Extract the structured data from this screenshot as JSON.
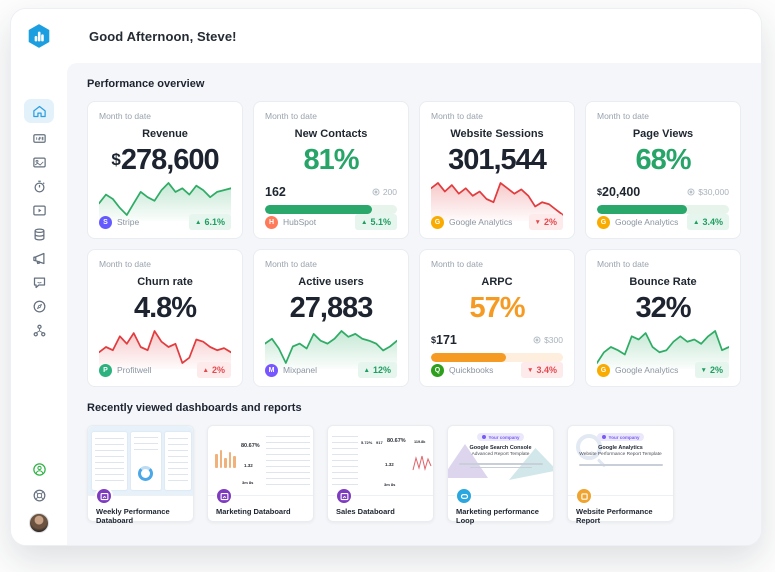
{
  "header": {
    "greeting": "Good Afternoon, Steve!"
  },
  "sections": {
    "performance": "Performance overview",
    "recent": "Recently viewed dashboards and reports"
  },
  "sidebar": {
    "icons": [
      "home",
      "metrics",
      "databoards",
      "goals",
      "reports",
      "data-sources",
      "alerts",
      "messages",
      "explore",
      "account-structure"
    ],
    "bottom_icons": [
      "assistant",
      "help",
      "avatar"
    ],
    "brand_color": "#1b9fe0"
  },
  "cards": [
    {
      "period": "Month to date",
      "title": "Revenue",
      "currency": "$",
      "value": "278,600",
      "value_tone": "tone-dark",
      "sparkline": {
        "color": "#2fac66",
        "points": [
          35,
          45,
          40,
          30,
          22,
          35,
          48,
          42,
          38,
          50,
          58,
          48,
          52,
          45,
          55,
          50,
          42,
          48,
          50,
          52
        ]
      },
      "source": {
        "name": "Stripe",
        "color": "#635bff",
        "glyph": "S"
      },
      "change": {
        "arrow": "▲",
        "text": "6.1%",
        "tone": "positive"
      }
    },
    {
      "period": "Month to date",
      "title": "New Contacts",
      "currency": "",
      "value": "81%",
      "value_tone": "tone-green",
      "progress": {
        "current_prefix": "",
        "current": "162",
        "goal": "200",
        "pct": 81,
        "fill": "#2aa76b",
        "track": "#e7f4ec"
      },
      "source": {
        "name": "HubSpot",
        "color": "#ff7a59",
        "glyph": "H"
      },
      "change": {
        "arrow": "▲",
        "text": "5.1%",
        "tone": "positive"
      }
    },
    {
      "period": "Month to date",
      "title": "Website Sessions",
      "currency": "",
      "value": "301,544",
      "value_tone": "tone-dark",
      "sparkline": {
        "color": "#e23c3f",
        "points": [
          55,
          60,
          52,
          58,
          50,
          55,
          48,
          52,
          45,
          42,
          60,
          55,
          50,
          54,
          48,
          38,
          42,
          40,
          35,
          30
        ]
      },
      "source": {
        "name": "Google Analytics",
        "color": "#f9ab00",
        "glyph": "G"
      },
      "change": {
        "arrow": "▼",
        "text": "2%",
        "tone": "negative"
      }
    },
    {
      "period": "Month to date",
      "title": "Page Views",
      "currency": "",
      "value": "68%",
      "value_tone": "tone-green",
      "progress": {
        "current_prefix": "$",
        "current": "20,400",
        "goal": "$30,000",
        "pct": 68,
        "fill": "#2aa76b",
        "track": "#e7f4ec"
      },
      "source": {
        "name": "Google Analytics",
        "color": "#f9ab00",
        "glyph": "G"
      },
      "change": {
        "arrow": "▲",
        "text": "3.4%",
        "tone": "positive"
      }
    },
    {
      "period": "Month to date",
      "title": "Churn rate",
      "currency": "",
      "value": "4.8%",
      "value_tone": "tone-dark",
      "sparkline": {
        "color": "#e23c3f",
        "points": [
          40,
          45,
          42,
          55,
          48,
          58,
          45,
          42,
          60,
          50,
          45,
          48,
          30,
          35,
          52,
          50,
          45,
          42,
          44,
          40
        ]
      },
      "source": {
        "name": "Profitwell",
        "color": "#2bb27e",
        "glyph": "P"
      },
      "change": {
        "arrow": "▲",
        "text": "2%",
        "tone": "negative"
      }
    },
    {
      "period": "Month to date",
      "title": "Active users",
      "currency": "",
      "value": "27,883",
      "value_tone": "tone-dark",
      "sparkline": {
        "color": "#2fac66",
        "points": [
          45,
          50,
          40,
          25,
          42,
          45,
          40,
          55,
          48,
          45,
          50,
          58,
          52,
          55,
          50,
          48,
          45,
          38,
          42,
          48
        ]
      },
      "source": {
        "name": "Mixpanel",
        "color": "#7856ff",
        "glyph": "M"
      },
      "change": {
        "arrow": "▲",
        "text": "12%",
        "tone": "positive"
      }
    },
    {
      "period": "Month to date",
      "title": "ARPC",
      "currency": "",
      "value": "57%",
      "value_tone": "tone-orange",
      "progress": {
        "current_prefix": "$",
        "current": "171",
        "goal": "$300",
        "pct": 57,
        "fill": "#f59b23",
        "track": "#fdeedd"
      },
      "source": {
        "name": "Quickbooks",
        "color": "#2ca01c",
        "glyph": "Q"
      },
      "change": {
        "arrow": "▼",
        "text": "3.4%",
        "tone": "negative"
      }
    },
    {
      "period": "Month to date",
      "title": "Bounce Rate",
      "currency": "",
      "value": "32%",
      "value_tone": "tone-dark",
      "sparkline": {
        "color": "#2fac66",
        "points": [
          30,
          40,
          45,
          42,
          38,
          55,
          52,
          58,
          45,
          40,
          42,
          50,
          55,
          50,
          52,
          48,
          55,
          60,
          42,
          45
        ]
      },
      "source": {
        "name": "Google Analytics",
        "color": "#f9ab00",
        "glyph": "G"
      },
      "change": {
        "arrow": "▼",
        "text": "2%",
        "tone": "positive"
      }
    }
  ],
  "recent": [
    {
      "title": "Weekly Performance Databoard",
      "badge_color": "#7e3bbf"
    },
    {
      "title": "Marketing Databoard",
      "badge_color": "#7e3bbf",
      "values": {
        "v1": "80.67%",
        "v2": "1.32",
        "v3": "3m 8s"
      }
    },
    {
      "title": "Sales Databoard",
      "badge_color": "#7e3bbf",
      "values": {
        "v1": "5.72%",
        "v2": "917",
        "v3": "80.67%",
        "v4": "119.8k",
        "v5": "1.32",
        "v6": "3m 8s"
      }
    },
    {
      "title": "Marketing performance Loop",
      "badge_color": "#2aa7e0",
      "pill": "Your company",
      "line1": "Google Search Console",
      "line2": "Advanced Report Template"
    },
    {
      "title": "Website Performance Report",
      "badge_color": "#f0a32f",
      "pill": "Your company",
      "line1": "Google Analytics",
      "line2": "Website Performance Report Template"
    }
  ]
}
